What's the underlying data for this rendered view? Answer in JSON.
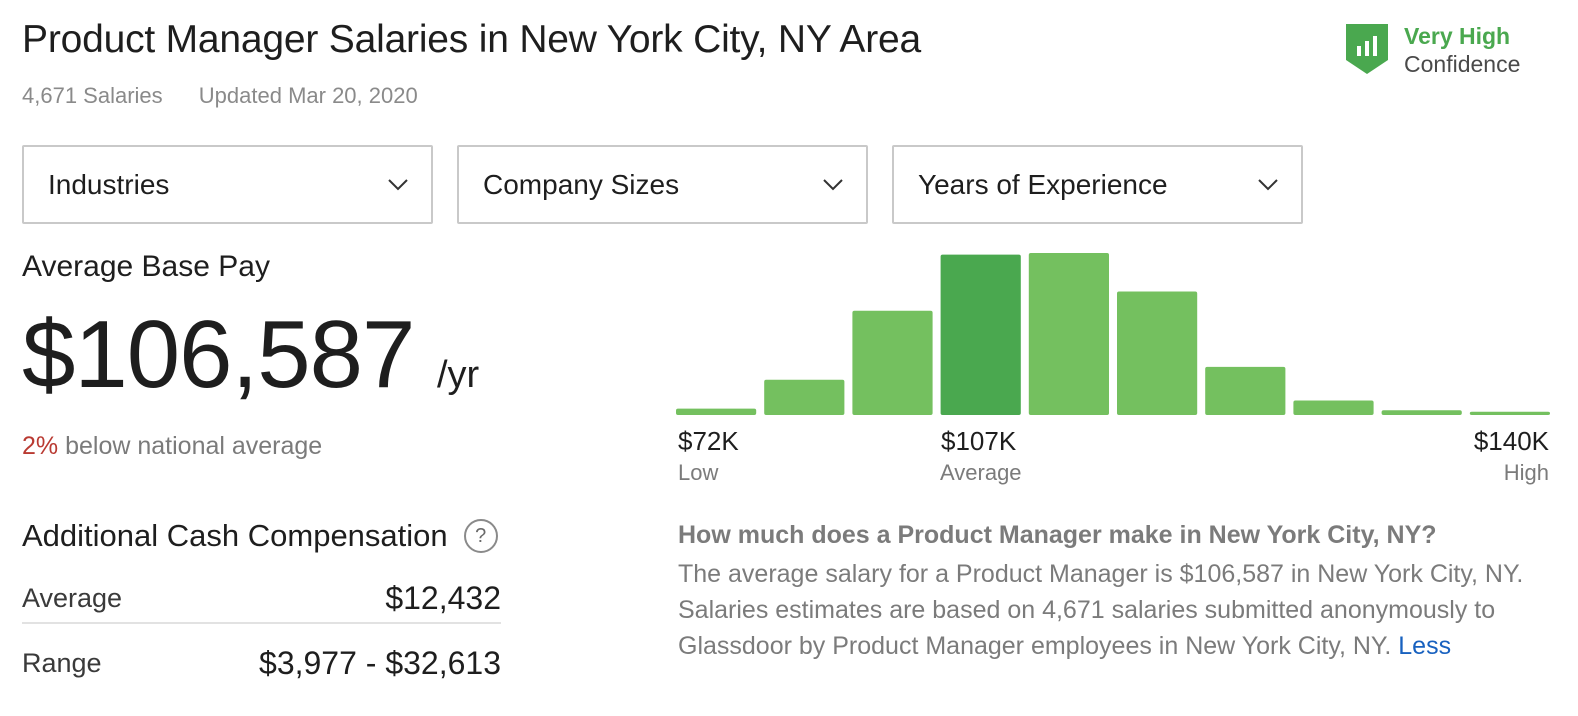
{
  "header": {
    "title": "Product Manager Salaries in New York City, NY Area",
    "salary_count": "4,671 Salaries",
    "updated": "Updated Mar 20, 2020"
  },
  "confidence": {
    "level": "Very High",
    "label": "Confidence",
    "icon": "bar-chart-shield-icon",
    "color": "#4aa84f"
  },
  "filters": [
    {
      "label": "Industries",
      "icon": "chevron-down-icon"
    },
    {
      "label": "Company Sizes",
      "icon": "chevron-down-icon"
    },
    {
      "label": "Years of Experience",
      "icon": "chevron-down-icon"
    }
  ],
  "base_pay": {
    "label": "Average Base Pay",
    "value": "$106,587",
    "unit": "/yr",
    "comparison_pct": "2%",
    "comparison_text": " below national average"
  },
  "cash_comp": {
    "title": "Additional Cash Compensation",
    "help_icon": "?",
    "rows": [
      {
        "key": "Average",
        "value": "$12,432"
      },
      {
        "key": "Range",
        "value": "$3,977 - $32,613"
      }
    ]
  },
  "chart_data": {
    "type": "bar",
    "title": "",
    "xlabel": "",
    "ylabel": "",
    "values": [
      4,
      22,
      65,
      100,
      101,
      77,
      30,
      9,
      3,
      2
    ],
    "highlight_index": 3,
    "colors": {
      "bar": "#74c05f",
      "highlight": "#4aa84f"
    },
    "axis_labels": [
      {
        "value": "$72K",
        "sub": "Low"
      },
      {
        "value": "$107K",
        "sub": "Average"
      },
      {
        "value": "$140K",
        "sub": "High"
      }
    ]
  },
  "description": {
    "question": "How much does a Product Manager make in New York City, NY?",
    "answer": "The average salary for a Product Manager is $106,587 in New York City, NY. Salaries estimates are based on 4,671 salaries submitted anonymously to Glassdoor by Product Manager employees in New York City, NY. ",
    "less_link": "Less"
  }
}
